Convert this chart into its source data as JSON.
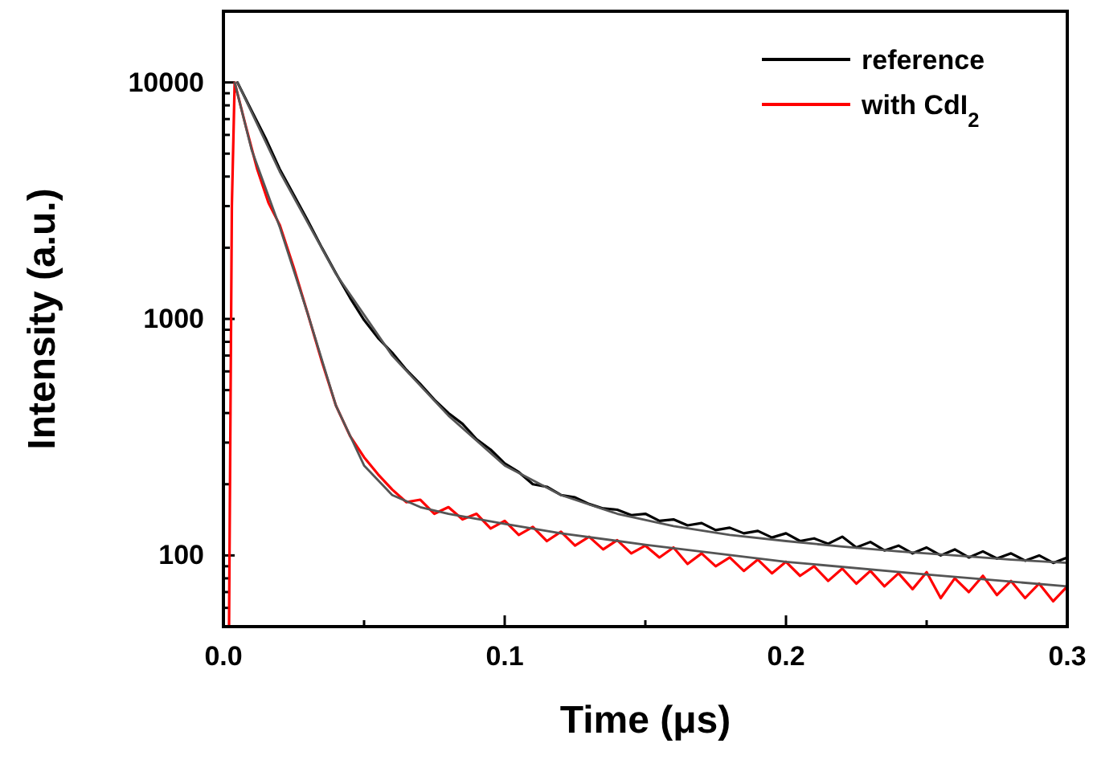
{
  "chart_data": {
    "type": "line",
    "xlabel": "Time (μs)",
    "ylabel": "Intensity (a.u.)",
    "xlim": [
      0,
      0.3
    ],
    "ylim": [
      50,
      20000
    ],
    "log": "y",
    "legend": "top right",
    "grid": false,
    "xticks": [
      {
        "value": 0,
        "label": "0.0"
      },
      {
        "value": 0.05,
        "label": null
      },
      0.1,
      {
        "value": 0.15,
        "label": null
      },
      0.2,
      {
        "value": 0.25,
        "label": null
      },
      0.3
    ],
    "yticks": [
      {
        "value": 60,
        "label": null
      },
      {
        "value": 70,
        "label": null
      },
      {
        "value": 80,
        "label": null
      },
      {
        "value": 90,
        "label": null
      },
      100,
      {
        "value": 200,
        "label": null
      },
      {
        "value": 300,
        "label": null
      },
      {
        "value": 400,
        "label": null
      },
      {
        "value": 500,
        "label": null
      },
      {
        "value": 600,
        "label": null
      },
      {
        "value": 700,
        "label": null
      },
      {
        "value": 800,
        "label": null
      },
      {
        "value": 900,
        "label": null
      },
      1000,
      {
        "value": 2000,
        "label": null
      },
      {
        "value": 3000,
        "label": null
      },
      {
        "value": 4000,
        "label": null
      },
      {
        "value": 5000,
        "label": null
      },
      {
        "value": 6000,
        "label": null
      },
      {
        "value": 7000,
        "label": null
      },
      {
        "value": 8000,
        "label": null
      },
      {
        "value": 9000,
        "label": null
      },
      10000
    ],
    "series": [
      {
        "name": "reference",
        "color": "#000000",
        "x": [
          0.005,
          0.01,
          0.015,
          0.02,
          0.025,
          0.03,
          0.035,
          0.04,
          0.045,
          0.05,
          0.055,
          0.06,
          0.065,
          0.07,
          0.075,
          0.08,
          0.085,
          0.09,
          0.095,
          0.1,
          0.105,
          0.11,
          0.115,
          0.12,
          0.125,
          0.13,
          0.135,
          0.14,
          0.145,
          0.15,
          0.155,
          0.16,
          0.165,
          0.17,
          0.175,
          0.18,
          0.185,
          0.19,
          0.195,
          0.2,
          0.205,
          0.21,
          0.215,
          0.22,
          0.225,
          0.23,
          0.235,
          0.24,
          0.245,
          0.25,
          0.255,
          0.26,
          0.265,
          0.27,
          0.275,
          0.28,
          0.285,
          0.29,
          0.295,
          0.3
        ],
        "values": [
          10000,
          7600,
          5800,
          4300,
          3350,
          2600,
          2000,
          1560,
          1230,
          990,
          830,
          720,
          610,
          530,
          455,
          400,
          360,
          310,
          280,
          245,
          225,
          200,
          195,
          180,
          176,
          165,
          158,
          156,
          148,
          150,
          140,
          142,
          134,
          137,
          128,
          131,
          124,
          127,
          119,
          124,
          115,
          118,
          112,
          120,
          108,
          114,
          105,
          110,
          102,
          108,
          100,
          106,
          98,
          104,
          97,
          102,
          95,
          100,
          93,
          98
        ]
      },
      {
        "name": "with CdI$_{2}$",
        "color": "#ff0000",
        "x": [
          0.002,
          0.003,
          0.004,
          0.008,
          0.012,
          0.016,
          0.02,
          0.025,
          0.03,
          0.035,
          0.04,
          0.045,
          0.05,
          0.055,
          0.06,
          0.065,
          0.07,
          0.075,
          0.08,
          0.085,
          0.09,
          0.095,
          0.1,
          0.105,
          0.11,
          0.115,
          0.12,
          0.125,
          0.13,
          0.135,
          0.14,
          0.145,
          0.15,
          0.155,
          0.16,
          0.165,
          0.17,
          0.175,
          0.18,
          0.185,
          0.19,
          0.195,
          0.2,
          0.205,
          0.21,
          0.215,
          0.22,
          0.225,
          0.23,
          0.235,
          0.24,
          0.245,
          0.25,
          0.255,
          0.26,
          0.265,
          0.27,
          0.275,
          0.28,
          0.285,
          0.29,
          0.295,
          0.3
        ],
        "values": [
          50,
          3000,
          10000,
          6500,
          4300,
          3100,
          2500,
          1650,
          1050,
          660,
          430,
          320,
          260,
          220,
          190,
          168,
          172,
          150,
          160,
          142,
          150,
          130,
          140,
          122,
          132,
          115,
          126,
          110,
          120,
          106,
          116,
          102,
          110,
          98,
          108,
          92,
          102,
          90,
          98,
          86,
          96,
          84,
          94,
          82,
          90,
          78,
          88,
          76,
          86,
          74,
          84,
          72,
          85,
          66,
          80,
          70,
          82,
          68,
          78,
          66,
          76,
          64,
          74
        ]
      },
      {
        "color": "#555555",
        "x": [
          0.005,
          0.02,
          0.04,
          0.06,
          0.08,
          0.1,
          0.12,
          0.14,
          0.16,
          0.18,
          0.2,
          0.22,
          0.24,
          0.26,
          0.28,
          0.3
        ],
        "values": [
          10000,
          4200,
          1550,
          700,
          390,
          240,
          180,
          150,
          133,
          122,
          115,
          109,
          104,
          100,
          96,
          93
        ]
      },
      {
        "color": "#555555",
        "x": [
          0.004,
          0.01,
          0.02,
          0.03,
          0.04,
          0.05,
          0.06,
          0.07,
          0.08,
          0.1,
          0.12,
          0.15,
          0.2,
          0.25,
          0.3
        ],
        "values": [
          10000,
          5200,
          2450,
          1050,
          430,
          240,
          180,
          160,
          150,
          136,
          124,
          111,
          94,
          83,
          74
        ]
      }
    ]
  }
}
